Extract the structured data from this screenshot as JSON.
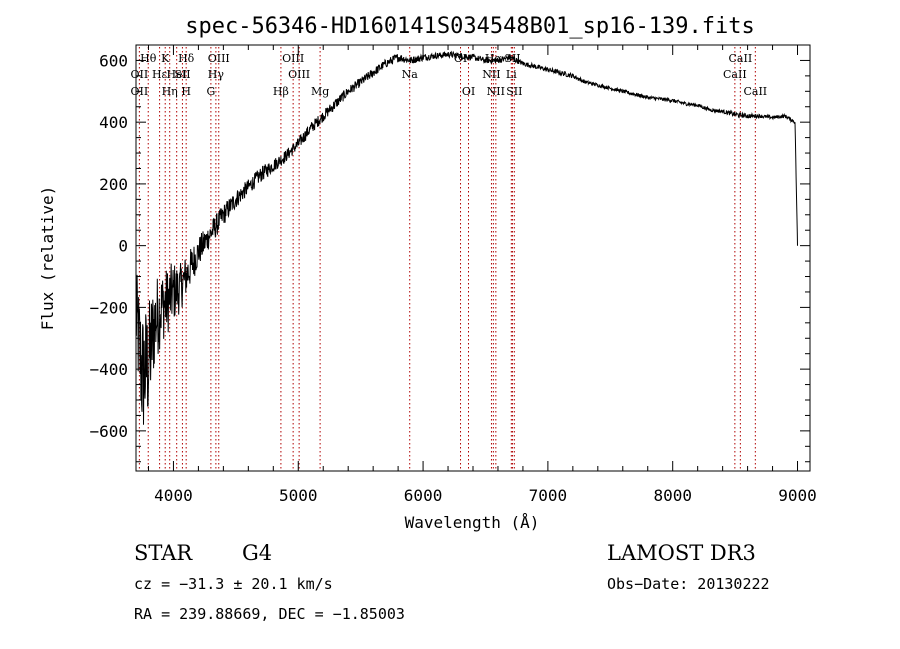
{
  "chart_data": {
    "type": "line",
    "title": "spec-56346-HD160141S034548B01_sp16-139.fits",
    "xlabel": "Wavelength (Å)",
    "ylabel": "Flux (relative)",
    "xlim": [
      3700,
      9100
    ],
    "ylim": [
      -730,
      650
    ],
    "xticks": [
      4000,
      5000,
      6000,
      7000,
      8000,
      9000
    ],
    "yticks": [
      -600,
      -400,
      -200,
      0,
      200,
      400,
      600
    ],
    "series": [
      {
        "name": "spectrum",
        "x": [
          3700,
          3750,
          3800,
          3850,
          3900,
          3950,
          4000,
          4050,
          4100,
          4200,
          4300,
          4400,
          4500,
          4600,
          4700,
          4800,
          4900,
          5000,
          5100,
          5200,
          5300,
          5400,
          5500,
          5600,
          5700,
          5800,
          5900,
          6000,
          6100,
          6200,
          6300,
          6400,
          6500,
          6600,
          6700,
          6800,
          6900,
          7000,
          7100,
          7200,
          7300,
          7400,
          7500,
          7600,
          7700,
          7800,
          7900,
          8000,
          8100,
          8200,
          8300,
          8400,
          8500,
          8600,
          8700,
          8800,
          8900,
          8980,
          9000
        ],
        "y": [
          -220,
          -420,
          -380,
          -250,
          -200,
          -180,
          -150,
          -140,
          -100,
          -20,
          40,
          100,
          150,
          190,
          230,
          260,
          290,
          330,
          380,
          420,
          460,
          500,
          530,
          560,
          590,
          610,
          600,
          610,
          615,
          620,
          615,
          610,
          600,
          600,
          610,
          590,
          580,
          570,
          560,
          550,
          530,
          520,
          510,
          500,
          490,
          480,
          475,
          470,
          460,
          455,
          440,
          435,
          425,
          420,
          420,
          415,
          420,
          400,
          0
        ],
        "noise": [
          150,
          220,
          200,
          150,
          120,
          110,
          100,
          80,
          70,
          50,
          40,
          35,
          30,
          25,
          25,
          22,
          20,
          20,
          20,
          18,
          18,
          16,
          15,
          15,
          14,
          14,
          12,
          12,
          10,
          10,
          10,
          10,
          10,
          10,
          10,
          8,
          8,
          8,
          8,
          8,
          6,
          6,
          6,
          6,
          6,
          6,
          6,
          6,
          6,
          6,
          6,
          6,
          8,
          8,
          6,
          6,
          6,
          6,
          0
        ]
      }
    ],
    "line_markers": [
      {
        "wave": 3727,
        "label": "OII",
        "row": 2
      },
      {
        "wave": 3727,
        "label": "OII",
        "row": 3
      },
      {
        "wave": 3798,
        "label": "Hθ",
        "row": 1
      },
      {
        "wave": 3889,
        "label": "Hε",
        "row": 2
      },
      {
        "wave": 3934,
        "label": "K",
        "row": 1
      },
      {
        "wave": 3970,
        "label": "Hη",
        "row": 3
      },
      {
        "wave": 4026,
        "label": "HeI",
        "row": 2
      },
      {
        "wave": 4072,
        "label": "SII",
        "row": 2
      },
      {
        "wave": 4102,
        "label": "Hδ",
        "row": 1
      },
      {
        "wave": 4102,
        "label": "H",
        "row": 3
      },
      {
        "wave": 4300,
        "label": "G",
        "row": 3
      },
      {
        "wave": 4340,
        "label": "Hγ",
        "row": 2
      },
      {
        "wave": 4363,
        "label": "OIII",
        "row": 1
      },
      {
        "wave": 4861,
        "label": "Hβ",
        "row": 3
      },
      {
        "wave": 4959,
        "label": "OIII",
        "row": 1
      },
      {
        "wave": 5007,
        "label": "OIII",
        "row": 2
      },
      {
        "wave": 5175,
        "label": "Mg",
        "row": 3
      },
      {
        "wave": 5893,
        "label": "Na",
        "row": 2
      },
      {
        "wave": 6300,
        "label": "OI",
        "row": 1
      },
      {
        "wave": 6364,
        "label": "OI",
        "row": 3
      },
      {
        "wave": 6548,
        "label": "NII",
        "row": 2
      },
      {
        "wave": 6563,
        "label": "Hα",
        "row": 1
      },
      {
        "wave": 6583,
        "label": "NII",
        "row": 3
      },
      {
        "wave": 6707,
        "label": "Li",
        "row": 2
      },
      {
        "wave": 6716,
        "label": "SII",
        "row": 1
      },
      {
        "wave": 6731,
        "label": "SII",
        "row": 3
      },
      {
        "wave": 8498,
        "label": "CaII",
        "row": 2
      },
      {
        "wave": 8542,
        "label": "CaII",
        "row": 1
      },
      {
        "wave": 8662,
        "label": "CaII",
        "row": 3
      }
    ]
  },
  "info": {
    "class": "STAR",
    "subclass": "G4",
    "survey": "LAMOST DR3",
    "cz": "cz = −31.3 ± 20.1 km/s",
    "obs_date": "Obs−Date: 20130222",
    "radec": "RA = 239.88669, DEC =  −1.85003"
  }
}
